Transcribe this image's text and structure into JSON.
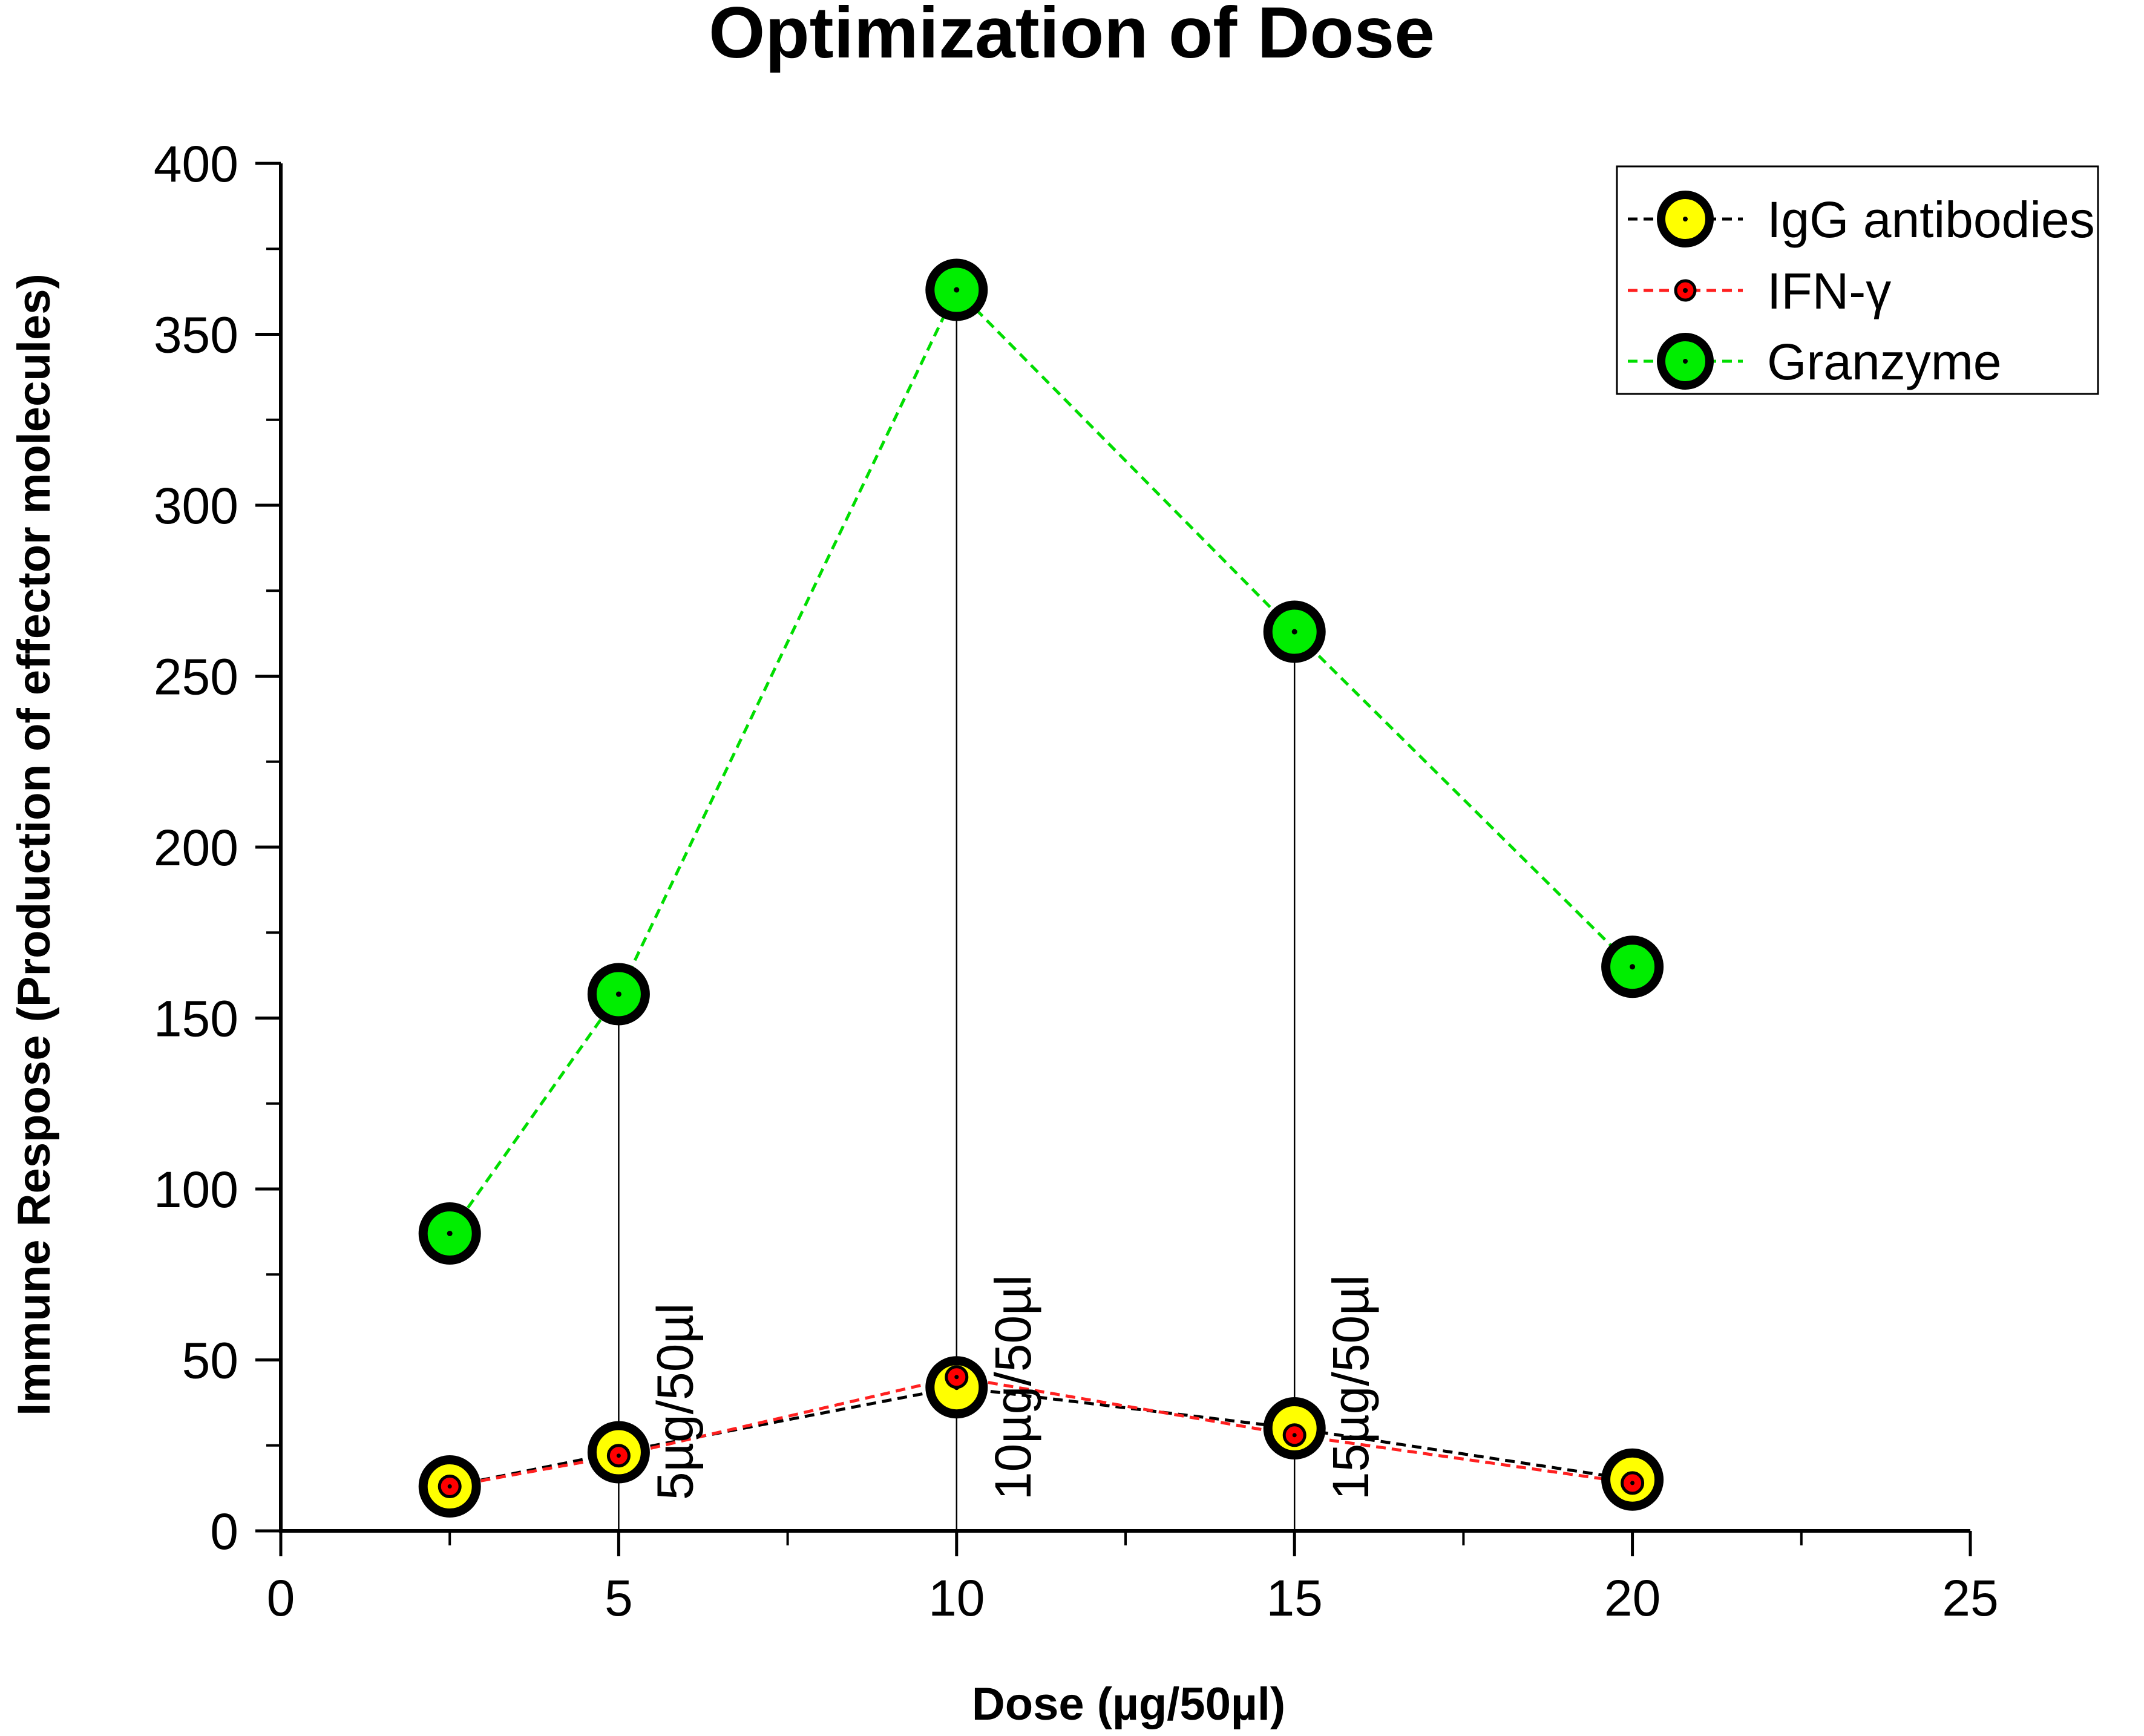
{
  "chart_data": {
    "type": "line",
    "title": "Optimization of Dose",
    "xlabel": "Dose (µg/50µl)",
    "ylabel": "Immune Respose (Production of effector molecules)",
    "xlim": [
      0,
      25
    ],
    "ylim": [
      0,
      400
    ],
    "x_ticks": [
      0,
      5,
      10,
      15,
      20,
      25
    ],
    "y_ticks": [
      0,
      50,
      100,
      150,
      200,
      250,
      300,
      350,
      400
    ],
    "grid": false,
    "legend_position": "top-right",
    "series": [
      {
        "name": "IgG antibodies",
        "x": [
          2.5,
          5,
          10,
          15,
          20
        ],
        "values": [
          13,
          23,
          42,
          30,
          15
        ],
        "line_color": "#000000",
        "marker_fill": "#ffff00",
        "line_style": "dashed",
        "marker": "large-circle"
      },
      {
        "name": "IFN-γ",
        "x": [
          2.5,
          5,
          10,
          15,
          20
        ],
        "values": [
          13,
          22,
          45,
          28,
          14
        ],
        "line_color": "#ff2020",
        "marker_fill": "#ff0000",
        "line_style": "dashed",
        "marker": "small-circle"
      },
      {
        "name": "Granzyme",
        "x": [
          2.5,
          5,
          10,
          15,
          20
        ],
        "values": [
          87,
          157,
          363,
          263,
          165
        ],
        "line_color": "#00dd00",
        "marker_fill": "#00ee00",
        "line_style": "dashed",
        "marker": "large-circle"
      }
    ],
    "annotations": [
      {
        "text": "5µg/50µl",
        "x": 5,
        "line_top": 157
      },
      {
        "text": "10µg/50µl",
        "x": 10,
        "line_top": 363
      },
      {
        "text": "15µg/50µl",
        "x": 15,
        "line_top": 263
      }
    ]
  }
}
